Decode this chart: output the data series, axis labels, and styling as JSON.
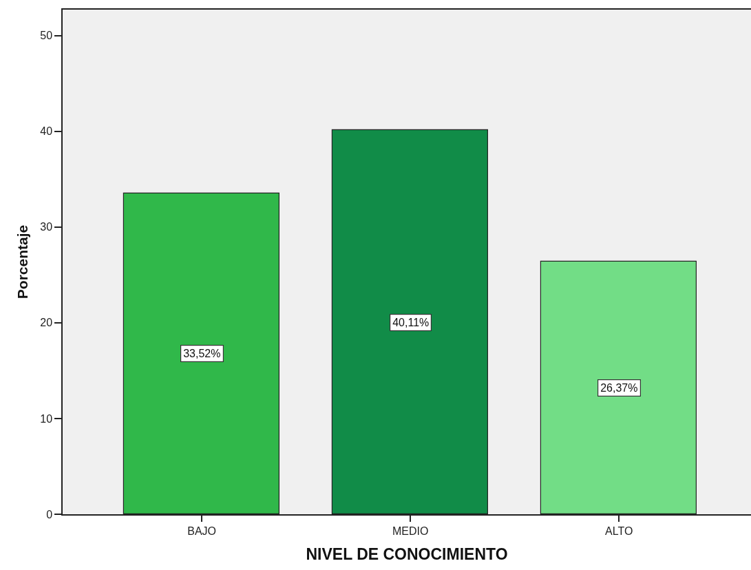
{
  "chart_data": {
    "type": "bar",
    "xlabel": "NIVEL DE CONOCIMIENTO",
    "ylabel": "Porcentaje",
    "categories": [
      "BAJO",
      "MEDIO",
      "ALTO"
    ],
    "values": [
      33.52,
      40.11,
      26.37
    ],
    "colors": [
      "#30b84a",
      "#118c48",
      "#72dd86"
    ],
    "value_labels": [
      "33,52%",
      "40,11%",
      "26,37%"
    ],
    "ylim": [
      0,
      52.7
    ],
    "yticks": [
      0,
      10,
      20,
      30,
      40,
      50
    ]
  }
}
